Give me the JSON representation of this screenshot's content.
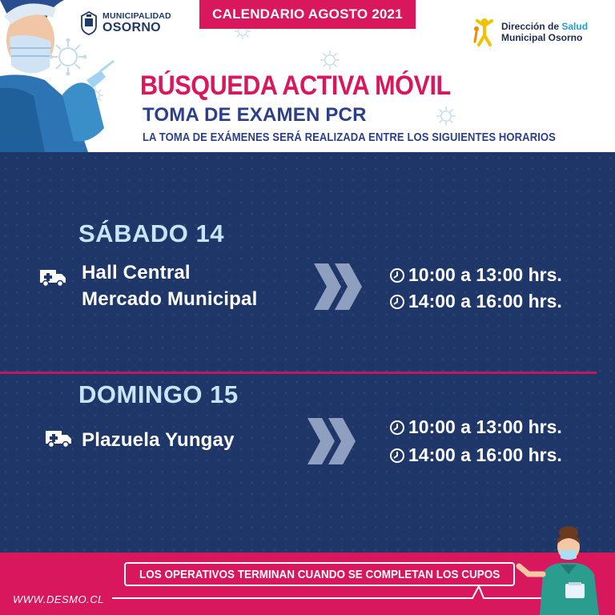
{
  "header": {
    "banner": "CALENDARIO AGOSTO 2021",
    "municipality_small": "MUNICIPALIDAD",
    "municipality_big": "OSORNO",
    "health_line1_a": "Dirección de ",
    "health_line1_b": "Salud",
    "health_line2": "Municipal Osorno",
    "title": "BÚSQUEDA ACTIVA MÓVIL",
    "subtitle": "TOMA DE EXAMEN PCR",
    "description": "LA TOMA DE EXÁMENES SERÁ REALIZADA ENTRE LOS SIGUIENTES HORARIOS"
  },
  "schedule": [
    {
      "day": "SÁBADO 14",
      "place_line1": "Hall Central",
      "place_line2": "Mercado Municipal",
      "times": [
        "10:00 a 13:00 hrs.",
        "14:00 a 16:00 hrs."
      ]
    },
    {
      "day": "DOMINGO 15",
      "place_line1": "Plazuela Yungay",
      "times": [
        "10:00 a 13:00 hrs.",
        "14:00 a 16:00 hrs."
      ]
    }
  ],
  "footer": {
    "notice": "LOS OPERATIVOS TERMINAN CUANDO SE COMPLETAN LOS CUPOS",
    "website": "WWW.DESMO.CL"
  },
  "colors": {
    "accent_pink": "#d9175c",
    "navy": "#1e3768",
    "day_title": "#c8e4f7",
    "title_blue": "#2c3f8a"
  },
  "icons": [
    "ambulance-icon",
    "chevrons-icon",
    "clock-icon",
    "shield-icon",
    "virus-icon"
  ]
}
